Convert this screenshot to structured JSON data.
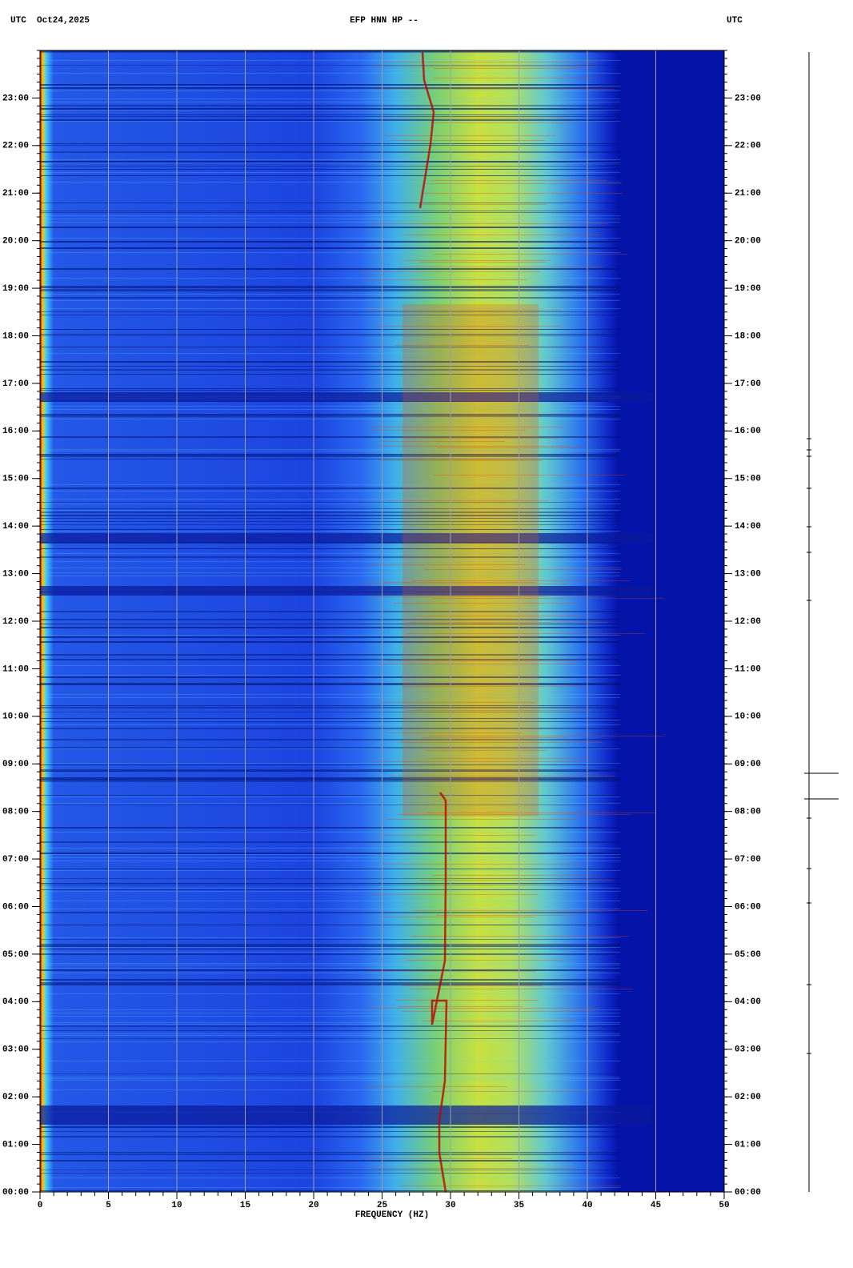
{
  "chart_data": {
    "type": "spectrogram",
    "title_left": "UTC  Oct24,2025",
    "title": "EFP HNN HP --",
    "title_right": "UTC",
    "x_label": "FREQUENCY (HZ)",
    "xlim": [
      0,
      50
    ],
    "xticks": [
      0,
      5,
      10,
      15,
      20,
      25,
      30,
      35,
      40,
      45,
      50
    ],
    "xgrid": true,
    "ylim": [
      0,
      24
    ],
    "yticks": [
      {
        "value": 0,
        "label": "00:00"
      },
      {
        "value": 1,
        "label": "01:00"
      },
      {
        "value": 2,
        "label": "02:00"
      },
      {
        "value": 3,
        "label": "03:00"
      },
      {
        "value": 4,
        "label": "04:00"
      },
      {
        "value": 5,
        "label": "05:00"
      },
      {
        "value": 6,
        "label": "06:00"
      },
      {
        "value": 7,
        "label": "07:00"
      },
      {
        "value": 8,
        "label": "08:00"
      },
      {
        "value": 9,
        "label": "09:00"
      },
      {
        "value": 10,
        "label": "10:00"
      },
      {
        "value": 11,
        "label": "11:00"
      },
      {
        "value": 12,
        "label": "12:00"
      },
      {
        "value": 13,
        "label": "13:00"
      },
      {
        "value": 14,
        "label": "14:00"
      },
      {
        "value": 15,
        "label": "15:00"
      },
      {
        "value": 16,
        "label": "16:00"
      },
      {
        "value": 17,
        "label": "17:00"
      },
      {
        "value": 18,
        "label": "18:00"
      },
      {
        "value": 19,
        "label": "19:00"
      },
      {
        "value": 20,
        "label": "20:00"
      },
      {
        "value": 21,
        "label": "21:00"
      },
      {
        "value": 22,
        "label": "22:00"
      },
      {
        "value": 23,
        "label": "23:00"
      }
    ]
  }
}
